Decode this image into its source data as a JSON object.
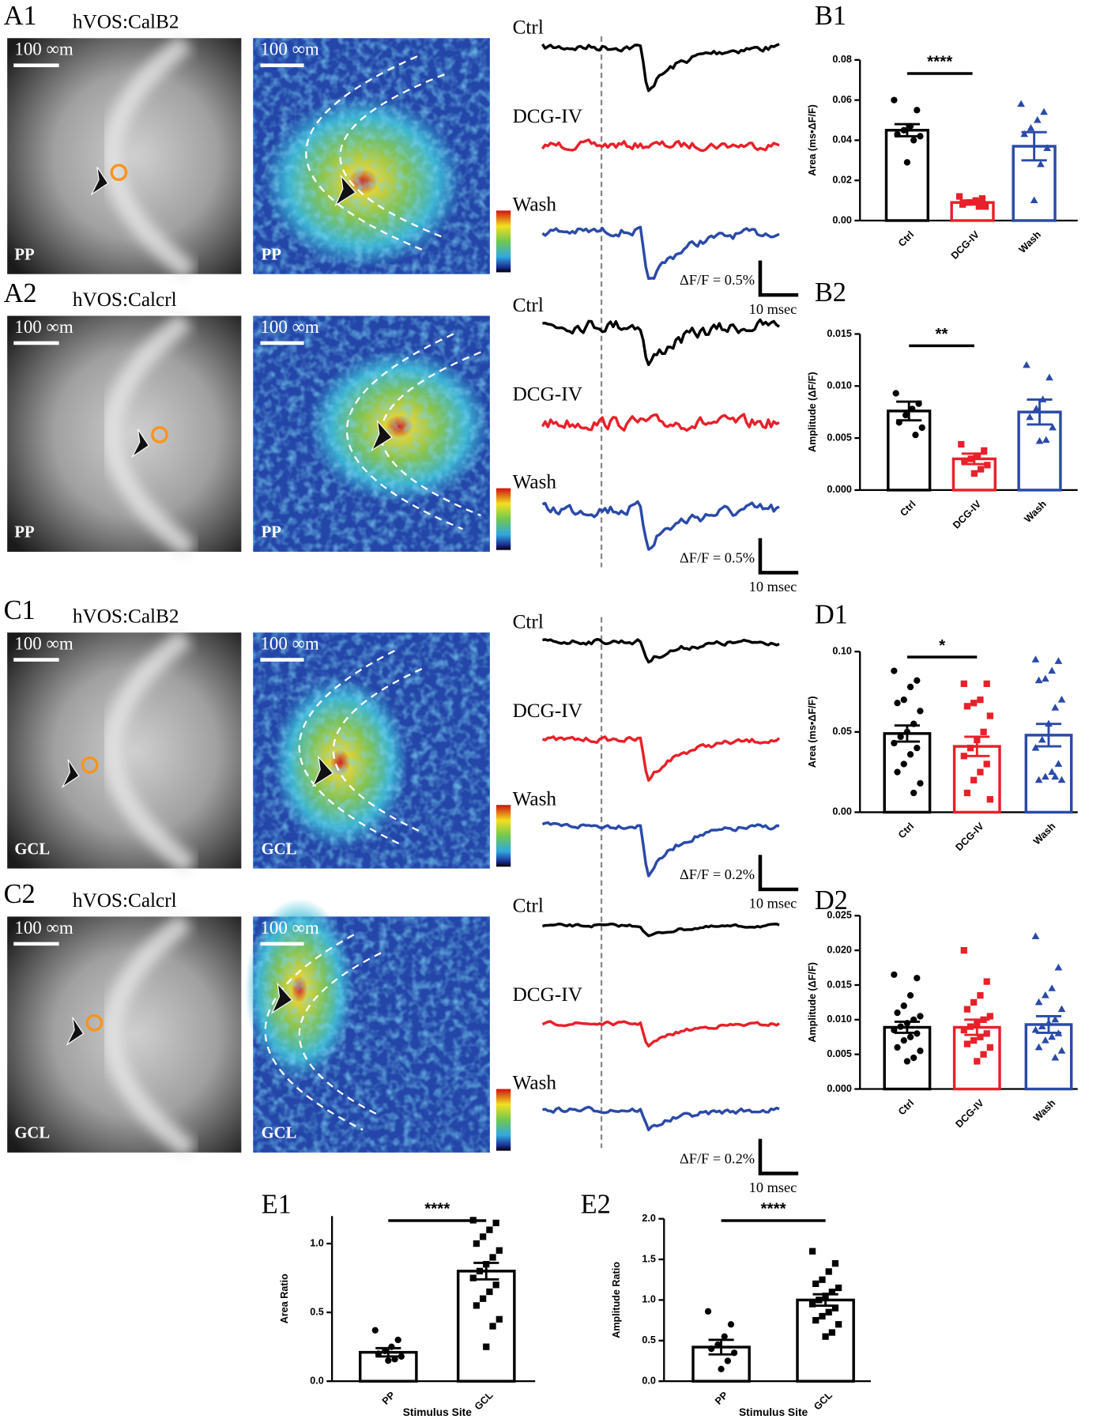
{
  "image_rows": [
    {
      "label": "A1",
      "construct": "hVOS:CalB2",
      "scale_bar": "100 ∞m",
      "region": "PP",
      "traces": [
        "Ctrl",
        "DCG-IV",
        "Wash"
      ],
      "amplitude_scale": "ΔF/F = 0.5%",
      "time_scale": "10 msec"
    },
    {
      "label": "A2",
      "construct": "hVOS:Calcrl",
      "scale_bar": "100 ∞m",
      "region": "PP",
      "traces": [
        "Ctrl",
        "DCG-IV",
        "Wash"
      ],
      "amplitude_scale": "ΔF/F = 0.5%",
      "time_scale": "10 msec"
    },
    {
      "label": "C1",
      "construct": "hVOS:CalB2",
      "scale_bar": "100 ∞m",
      "region": "GCL",
      "traces": [
        "Ctrl",
        "DCG-IV",
        "Wash"
      ],
      "amplitude_scale": "ΔF/F = 0.2%",
      "time_scale": "10 msec"
    },
    {
      "label": "C2",
      "construct": "hVOS:Calcrl",
      "scale_bar": "100 ∞m",
      "region": "GCL",
      "traces": [
        "Ctrl",
        "DCG-IV",
        "Wash"
      ],
      "amplitude_scale": "ΔF/F = 0.2%",
      "time_scale": "10 msec"
    }
  ],
  "chart_data": [
    {
      "label": "B1",
      "type": "bar",
      "y_label": "Area (ms•ΔF/F)",
      "categories": [
        "Ctrl",
        "DCG-IV",
        "Wash"
      ],
      "values": [
        0.045,
        0.009,
        0.037
      ],
      "errors": [
        0.003,
        0.001,
        0.007
      ],
      "points": [
        [
          0.06,
          0.055,
          0.047,
          0.045,
          0.043,
          0.042,
          0.04,
          0.029
        ],
        [
          0.012,
          0.011,
          0.01,
          0.009,
          0.008,
          0.007,
          0.007
        ],
        [
          0.058,
          0.054,
          0.05,
          0.046,
          0.043,
          0.036,
          0.028,
          0.01
        ]
      ],
      "ylim": [
        0,
        0.08
      ],
      "yticks": [
        {
          "value": 0,
          "label": "0.00"
        },
        0.02,
        0.04,
        0.06,
        0.08
      ],
      "significance": "****",
      "colors": [
        "#000000",
        "#e8202a",
        "#2a4aa8"
      ],
      "markers": [
        "circle",
        "square",
        "triangle"
      ]
    },
    {
      "label": "B2",
      "type": "bar",
      "y_label": "Amplitude (ΔF/F)",
      "categories": [
        "Ctrl",
        "DCG-IV",
        "Wash"
      ],
      "values": [
        0.0076,
        0.003,
        0.0075
      ],
      "errors": [
        0.0009,
        0.0005,
        0.0012
      ],
      "points": [
        [
          0.0093,
          0.0083,
          0.0078,
          0.0072,
          0.0065,
          0.006,
          0.0053
        ],
        [
          0.0044,
          0.0038,
          0.0033,
          0.003,
          0.0028,
          0.0024,
          0.002,
          0.0016
        ],
        [
          0.012,
          0.0108,
          0.0087,
          0.0078,
          0.007,
          0.006,
          0.0048,
          0.0047
        ]
      ],
      "ylim": [
        0,
        0.015
      ],
      "yticks": [
        {
          "value": 0,
          "label": "0.000"
        },
        0.005,
        {
          "value": 0.01,
          "label": "0.010"
        },
        0.015
      ],
      "significance": "**",
      "colors": [
        "#000000",
        "#e8202a",
        "#2a4aa8"
      ],
      "markers": [
        "circle",
        "square",
        "triangle"
      ]
    },
    {
      "label": "D1",
      "type": "bar",
      "y_label": "Area (ms•ΔF/F)",
      "categories": [
        "Ctrl",
        "DCG-IV",
        "Wash"
      ],
      "values": [
        0.049,
        0.041,
        0.048
      ],
      "errors": [
        0.005,
        0.006,
        0.007
      ],
      "points": [
        [
          0.088,
          0.082,
          0.078,
          0.07,
          0.068,
          0.063,
          0.055,
          0.05,
          0.047,
          0.043,
          0.04,
          0.036,
          0.03,
          0.025,
          0.018,
          0.012
        ],
        [
          0.08,
          0.08,
          0.07,
          0.068,
          0.066,
          0.06,
          0.05,
          0.045,
          0.04,
          0.035,
          0.03,
          0.025,
          0.02,
          0.012,
          0.008
        ],
        [
          0.095,
          0.094,
          0.088,
          0.083,
          0.082,
          0.07,
          0.065,
          0.055,
          0.045,
          0.04,
          0.03,
          0.025,
          0.022,
          0.02,
          0.02,
          0.022
        ]
      ],
      "ylim": [
        0,
        0.1
      ],
      "yticks": [
        {
          "value": 0,
          "label": "0.00"
        },
        0.05,
        {
          "value": 0.1,
          "label": "0.10"
        }
      ],
      "significance": "*",
      "colors": [
        "#000000",
        "#e8202a",
        "#2a4aa8"
      ],
      "markers": [
        "circle",
        "square",
        "triangle"
      ]
    },
    {
      "label": "D2",
      "type": "bar",
      "y_label": "Amplitude (ΔF/F)",
      "categories": [
        "Ctrl",
        "DCG-IV",
        "Wash"
      ],
      "values": [
        0.0089,
        0.0089,
        0.0093
      ],
      "errors": [
        0.0008,
        0.0011,
        0.0012
      ],
      "points": [
        [
          0.0165,
          0.016,
          0.0135,
          0.012,
          0.011,
          0.0105,
          0.01,
          0.0095,
          0.009,
          0.0085,
          0.008,
          0.0075,
          0.007,
          0.006,
          0.0055,
          0.0045,
          0.004
        ],
        [
          0.02,
          0.0155,
          0.0135,
          0.0125,
          0.0115,
          0.0105,
          0.01,
          0.0095,
          0.009,
          0.0085,
          0.008,
          0.0075,
          0.007,
          0.0065,
          0.006,
          0.005,
          0.004
        ],
        [
          0.022,
          0.0175,
          0.0145,
          0.0135,
          0.0125,
          0.0115,
          0.01,
          0.0095,
          0.009,
          0.0085,
          0.008,
          0.0075,
          0.007,
          0.006,
          0.0055,
          0.0045
        ]
      ],
      "ylim": [
        0,
        0.025
      ],
      "yticks": [
        {
          "value": 0,
          "label": "0.000"
        },
        0.005,
        {
          "value": 0.01,
          "label": "0.010"
        },
        0.015,
        {
          "value": 0.02,
          "label": "0.020"
        },
        0.025
      ],
      "colors": [
        "#000000",
        "#e8202a",
        "#2a4aa8"
      ],
      "markers": [
        "circle",
        "square",
        "triangle"
      ]
    },
    {
      "label": "E1",
      "type": "bar",
      "y_label": "Area Ratio",
      "x_label": "Stimulus Site",
      "categories": [
        "PP",
        "GCL"
      ],
      "values": [
        0.21,
        0.8
      ],
      "errors": [
        0.03,
        0.06
      ],
      "points": [
        [
          0.37,
          0.3,
          0.25,
          0.22,
          0.2,
          0.18,
          0.16,
          0.15
        ],
        [
          1.17,
          1.15,
          1.1,
          1.05,
          1.0,
          0.95,
          0.9,
          0.85,
          0.8,
          0.75,
          0.7,
          0.65,
          0.6,
          0.55,
          0.45,
          0.4,
          0.25
        ]
      ],
      "ylim": [
        0,
        1.2
      ],
      "yticks": [
        {
          "value": 0,
          "label": "0.0"
        },
        0.5,
        {
          "value": 1,
          "label": "1.0"
        }
      ],
      "significance": "****",
      "colors": [
        "#000000",
        "#000000"
      ],
      "markers": [
        "circle",
        "square"
      ]
    },
    {
      "label": "E2",
      "type": "bar",
      "y_label": "Amplitude Ratio",
      "x_label": "Stimulus Site",
      "categories": [
        "PP",
        "GCL"
      ],
      "values": [
        0.42,
        1.0
      ],
      "errors": [
        0.09,
        0.07
      ],
      "points": [
        [
          0.86,
          0.7,
          0.55,
          0.45,
          0.4,
          0.35,
          0.25,
          0.15
        ],
        [
          1.6,
          1.45,
          1.35,
          1.25,
          1.2,
          1.15,
          1.1,
          1.05,
          1.0,
          0.95,
          0.9,
          0.85,
          0.8,
          0.75,
          0.7,
          0.6,
          0.55
        ]
      ],
      "ylim": [
        0,
        2
      ],
      "yticks": [
        {
          "value": 0,
          "label": "0.0"
        },
        0.5,
        {
          "value": 1,
          "label": "1.0"
        },
        1.5,
        {
          "value": 2,
          "label": "2.0"
        }
      ],
      "significance": "****",
      "colors": [
        "#000000",
        "#000000"
      ],
      "markers": [
        "circle",
        "square"
      ]
    }
  ]
}
